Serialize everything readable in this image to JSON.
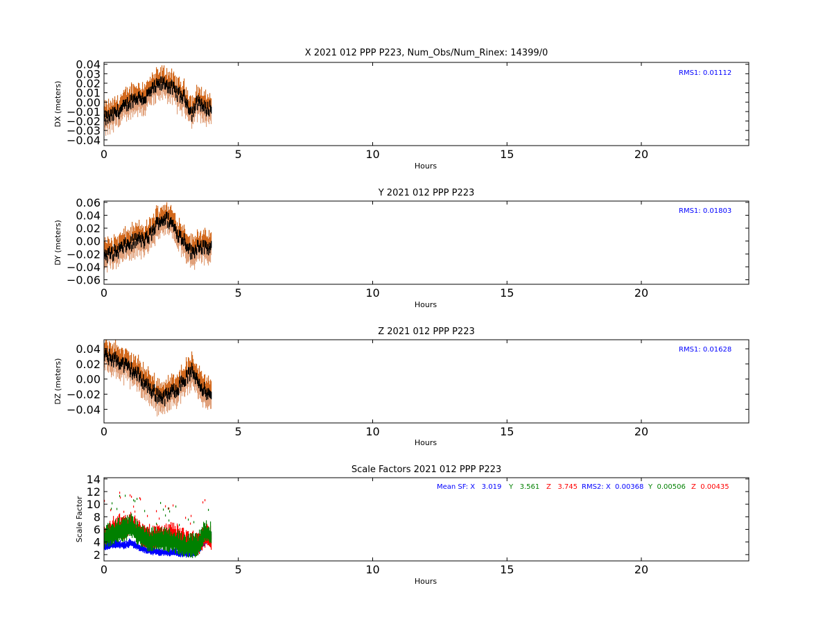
{
  "figure": {
    "background": "#ffffff",
    "colors": {
      "upper_sigma": "#d2691e",
      "lower_sigma": "#e0a07a",
      "solution": "#000000",
      "sf_x": "#0000ff",
      "sf_y": "#008000",
      "sf_z": "#ff0000",
      "rms_text": "#0000ff"
    }
  },
  "chart_data": [
    {
      "id": "dx",
      "type": "scatter",
      "title": "X 2021 012 PPP  P223, Num_Obs/Num_Rinex: 14399/0",
      "xlabel": "Hours",
      "ylabel": "DX (meters)",
      "xlim": [
        0,
        24
      ],
      "ylim": [
        -0.046,
        0.042
      ],
      "xticks": [
        0,
        5,
        10,
        15,
        20
      ],
      "xtick_labels": [
        "0",
        "5",
        "10",
        "15",
        "20"
      ],
      "yticks": [
        0.04,
        0.03,
        0.02,
        0.01,
        0.0,
        -0.01,
        -0.02,
        -0.03,
        -0.04
      ],
      "ytick_labels": [
        "0.04",
        "0.03",
        "0.02",
        "0.01",
        "0.00",
        "−0.01",
        "−0.02",
        "−0.03",
        "−0.04"
      ],
      "annotation": "RMS1:  0.01112",
      "annotation_color": "#0000ff",
      "sigma": 0.012,
      "series": [
        {
          "role": "solution",
          "x": [
            0,
            0.25,
            0.5,
            0.75,
            1.0,
            1.25,
            1.5,
            1.75,
            2.0,
            2.25,
            2.5,
            2.75,
            3.0,
            3.25,
            3.5,
            3.75,
            4.0
          ],
          "values": [
            -0.018,
            -0.015,
            -0.01,
            -0.005,
            0.002,
            0.005,
            0.004,
            0.012,
            0.018,
            0.02,
            0.015,
            0.008,
            0.004,
            -0.012,
            0.002,
            -0.008,
            -0.005
          ]
        }
      ]
    },
    {
      "id": "dy",
      "type": "scatter",
      "title": "Y 2021 012 PPP  P223",
      "xlabel": "Hours",
      "ylabel": "DY (meters)",
      "xlim": [
        0,
        24
      ],
      "ylim": [
        -0.067,
        0.062
      ],
      "xticks": [
        0,
        5,
        10,
        15,
        20
      ],
      "xtick_labels": [
        "0",
        "5",
        "10",
        "15",
        "20"
      ],
      "yticks": [
        0.06,
        0.04,
        0.02,
        0.0,
        -0.02,
        -0.04,
        -0.06
      ],
      "ytick_labels": [
        "0.06",
        "0.04",
        "0.02",
        "0.00",
        "−0.02",
        "−0.04",
        "−0.06"
      ],
      "annotation": "RMS1:  0.01803",
      "annotation_color": "#0000ff",
      "sigma": 0.018,
      "series": [
        {
          "role": "solution",
          "x": [
            0,
            0.25,
            0.5,
            0.75,
            1.0,
            1.25,
            1.5,
            1.75,
            2.0,
            2.25,
            2.5,
            2.75,
            3.0,
            3.25,
            3.5,
            3.75,
            4.0
          ],
          "values": [
            -0.022,
            -0.02,
            -0.015,
            -0.008,
            -0.003,
            0.003,
            0.0,
            0.012,
            0.03,
            0.035,
            0.028,
            0.01,
            0.0,
            -0.02,
            -0.005,
            -0.012,
            -0.01
          ]
        }
      ]
    },
    {
      "id": "dz",
      "type": "scatter",
      "title": "Z 2021 012 PPP  P223",
      "xlabel": "Hours",
      "ylabel": "DZ (meters)",
      "xlim": [
        0,
        24
      ],
      "ylim": [
        -0.058,
        0.052
      ],
      "xticks": [
        0,
        5,
        10,
        15,
        20
      ],
      "xtick_labels": [
        "0",
        "5",
        "10",
        "15",
        "20"
      ],
      "yticks": [
        0.04,
        0.02,
        0.0,
        -0.02,
        -0.04
      ],
      "ytick_labels": [
        "0.04",
        "0.02",
        "0.00",
        "−0.02",
        "−0.04"
      ],
      "annotation": "RMS1:  0.01628",
      "annotation_color": "#0000ff",
      "sigma": 0.016,
      "series": [
        {
          "role": "solution",
          "x": [
            0,
            0.25,
            0.5,
            0.75,
            1.0,
            1.25,
            1.5,
            1.75,
            2.0,
            2.25,
            2.5,
            2.75,
            3.0,
            3.25,
            3.5,
            3.75,
            4.0
          ],
          "values": [
            0.03,
            0.028,
            0.024,
            0.018,
            0.012,
            0.005,
            -0.005,
            -0.015,
            -0.022,
            -0.024,
            -0.018,
            -0.01,
            0.0,
            0.01,
            -0.002,
            -0.018,
            -0.025
          ]
        }
      ]
    },
    {
      "id": "sf",
      "type": "scatter",
      "title": "Scale Factors 2021 012 PPP  P223",
      "xlabel": "Hours",
      "ylabel": "Scale Factor",
      "xlim": [
        0,
        24
      ],
      "ylim": [
        1.0,
        14.2
      ],
      "xticks": [
        0,
        5,
        10,
        15,
        20
      ],
      "xtick_labels": [
        "0",
        "5",
        "10",
        "15",
        "20"
      ],
      "yticks": [
        14,
        12,
        10,
        8,
        6,
        4,
        2
      ],
      "ytick_labels": [
        "14",
        "12",
        "10",
        "8",
        "6",
        "4",
        "2"
      ],
      "legend_text": [
        {
          "text": "Mean SF: X   3.019",
          "color": "#0000ff"
        },
        {
          "text": "Y   3.561",
          "color": "#008000"
        },
        {
          "text": "Z   3.745",
          "color": "#ff0000"
        },
        {
          "text": "RMS2: X  0.00368",
          "color": "#0000ff"
        },
        {
          "text": "Y  0.00506",
          "color": "#008000"
        },
        {
          "text": "Z  0.00435",
          "color": "#ff0000"
        }
      ],
      "series": [
        {
          "role": "X",
          "x": [
            0,
            0.25,
            0.5,
            0.75,
            1.0,
            1.25,
            1.5,
            1.75,
            2.0,
            2.25,
            2.5,
            2.75,
            3.0,
            3.25,
            3.5,
            3.75,
            4.0
          ],
          "values": [
            3.2,
            3.5,
            3.6,
            3.4,
            3.8,
            3.2,
            2.8,
            2.5,
            2.4,
            2.3,
            2.3,
            2.2,
            2.1,
            2.0,
            2.6,
            4.0,
            5.0
          ]
        },
        {
          "role": "Z",
          "x": [
            0,
            0.25,
            0.5,
            0.75,
            1.0,
            1.25,
            1.5,
            1.75,
            2.0,
            2.25,
            2.5,
            2.75,
            3.0,
            3.25,
            3.5,
            3.75,
            4.0
          ],
          "values": [
            4.8,
            5.5,
            6.2,
            6.0,
            6.8,
            5.5,
            4.5,
            4.2,
            4.6,
            4.5,
            4.8,
            4.6,
            3.8,
            3.5,
            3.4,
            4.6,
            4.2
          ]
        },
        {
          "role": "Y",
          "x": [
            0,
            0.25,
            0.5,
            0.75,
            1.0,
            1.25,
            1.5,
            1.75,
            2.0,
            2.25,
            2.5,
            2.75,
            3.0,
            3.25,
            3.5,
            3.75,
            4.0
          ],
          "values": [
            4.5,
            5.0,
            5.5,
            5.6,
            6.2,
            5.0,
            4.2,
            4.0,
            4.2,
            4.0,
            3.9,
            3.6,
            3.2,
            3.0,
            3.3,
            5.5,
            4.8
          ]
        }
      ]
    }
  ]
}
